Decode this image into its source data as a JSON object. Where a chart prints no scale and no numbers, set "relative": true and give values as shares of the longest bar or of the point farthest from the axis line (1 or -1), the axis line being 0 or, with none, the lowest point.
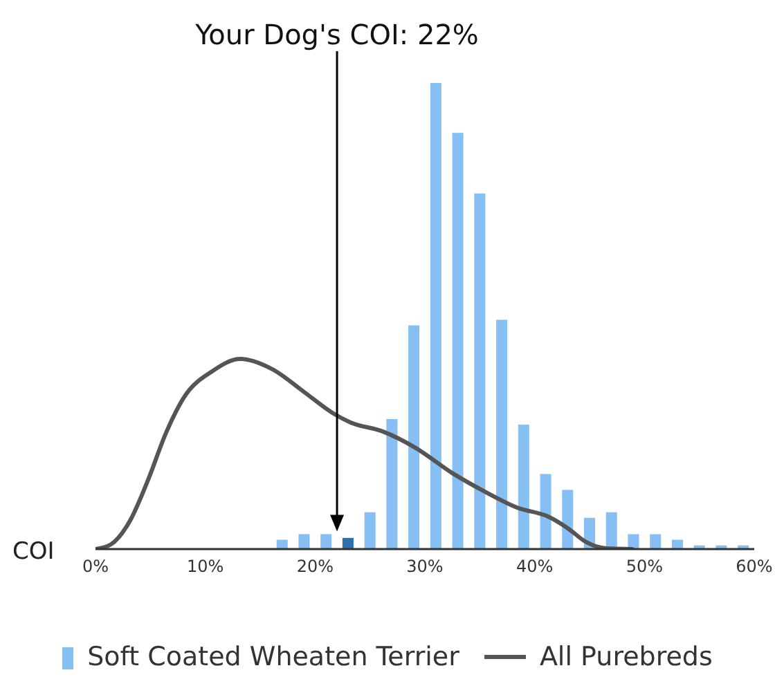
{
  "chart_data": {
    "type": "bar",
    "relative": true,
    "xlabel": "COI",
    "xlim": [
      0,
      60
    ],
    "xticks": [
      {
        "value": 0,
        "label": "0%"
      },
      {
        "value": 10,
        "label": "10%"
      },
      {
        "value": 20,
        "label": "20%"
      },
      {
        "value": 30,
        "label": "30%"
      },
      {
        "value": 40,
        "label": "40%"
      },
      {
        "value": 50,
        "label": "50%"
      },
      {
        "value": 60,
        "label": "60%"
      }
    ],
    "grid": false,
    "legend": "bottom",
    "series": [
      {
        "name": "Soft Coated Wheaten Terrier",
        "color": "#85bff3",
        "x": [
          17,
          19,
          21,
          23,
          25,
          27,
          29,
          31,
          33,
          35,
          37,
          39,
          41,
          43,
          45,
          47,
          49,
          51,
          53,
          55,
          57,
          59
        ],
        "values": [
          0.02,
          0.032,
          0.032,
          0.024,
          0.079,
          0.279,
          0.48,
          1,
          0.893,
          0.763,
          0.492,
          0.267,
          0.161,
          0.127,
          0.067,
          0.079,
          0.032,
          0.032,
          0.02,
          0.008,
          0.008,
          0.008
        ],
        "colors": [
          "#85bff3",
          "#85bff3",
          "#85bff3",
          "#2e6fad",
          "#85bff3",
          "#85bff3",
          "#85bff3",
          "#85bff3",
          "#85bff3",
          "#85bff3",
          "#85bff3",
          "#85bff3",
          "#85bff3",
          "#85bff3",
          "#85bff3",
          "#85bff3",
          "#85bff3",
          "#85bff3",
          "#85bff3",
          "#85bff3",
          "#85bff3",
          "#85bff3"
        ]
      },
      {
        "name": "All Purebreds",
        "type": "line",
        "color": "#555555",
        "x": [
          0,
          1.4,
          3.1,
          4.8,
          6.4,
          8.1,
          10.6,
          13.2,
          16.1,
          19,
          21.6,
          23.2,
          26.2,
          29.1,
          32.5,
          35.4,
          38.4,
          41.3,
          43,
          44.7,
          46.4,
          48.9
        ],
        "values": [
          0,
          0.01,
          0.059,
          0.149,
          0.248,
          0.327,
          0.381,
          0.408,
          0.386,
          0.337,
          0.292,
          0.272,
          0.252,
          0.218,
          0.163,
          0.124,
          0.089,
          0.069,
          0.045,
          0.015,
          0.002,
          0
        ]
      }
    ],
    "ref_lines": [
      {
        "axis": "x",
        "value": 22,
        "label": "Your Dog's COI: 22%",
        "color": "#000000"
      }
    ]
  }
}
